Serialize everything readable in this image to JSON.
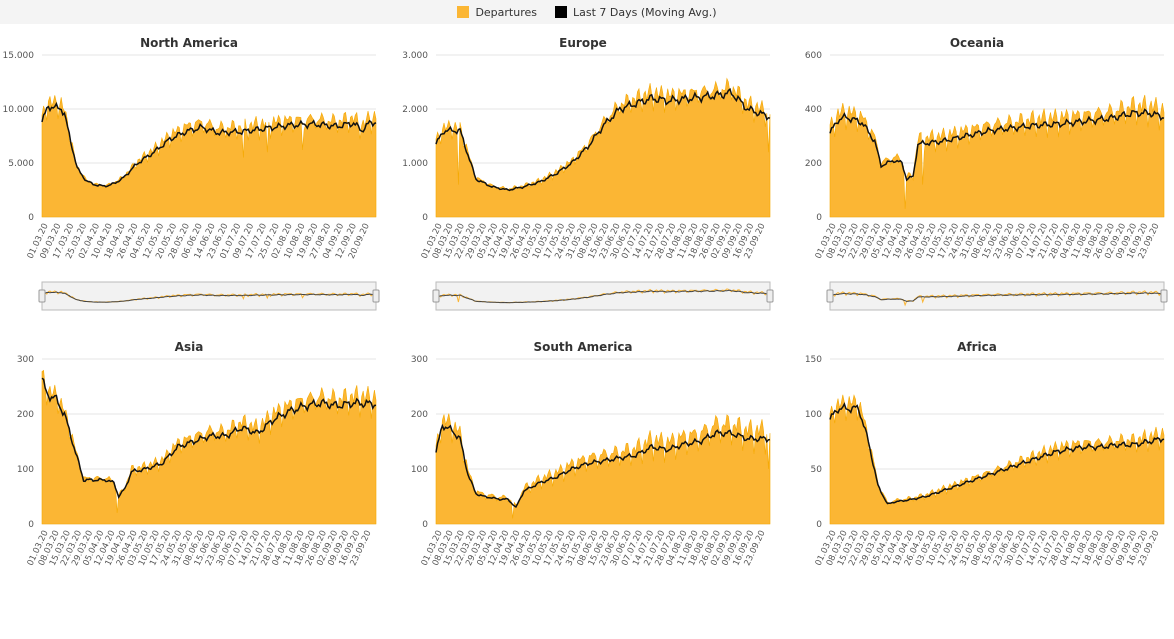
{
  "legend": {
    "items": [
      {
        "label": "Departures",
        "color": "#fbb634"
      },
      {
        "label": "Last 7 Days (Moving Avg.)",
        "color": "#000000"
      }
    ]
  },
  "colors": {
    "area": "#fbb634",
    "avg": "#111111"
  },
  "chart_data": [
    {
      "type": "area",
      "title": "North America",
      "ylim": [
        0,
        15000
      ],
      "yticks": [
        0,
        5000,
        10000,
        15000
      ],
      "ytick_labels": [
        "0",
        "5.000",
        "10.000",
        "15.000"
      ],
      "x_tick_labels": [
        "01.03.20",
        "09.03.20",
        "17.03.20",
        "25.03.20",
        "02.04.20",
        "10.04.20",
        "18.04.20",
        "26.04.20",
        "04.05.20",
        "12.05.20",
        "20.05.20",
        "28.05.20",
        "06.06.20",
        "14.06.20",
        "23.06.20",
        "01.07.20",
        "09.07.20",
        "17.07.20",
        "25.07.20",
        "02.08.20",
        "10.08.20",
        "19.08.20",
        "27.08.20",
        "04.09.20",
        "12.09.20",
        "20.09.20"
      ],
      "n_days": 210,
      "navigator": true,
      "avg_keypoints": [
        [
          0,
          8800
        ],
        [
          4,
          10300
        ],
        [
          8,
          10100
        ],
        [
          12,
          10100
        ],
        [
          14,
          9500
        ],
        [
          18,
          7000
        ],
        [
          22,
          4500
        ],
        [
          28,
          3300
        ],
        [
          35,
          2900
        ],
        [
          42,
          2900
        ],
        [
          50,
          3500
        ],
        [
          60,
          5000
        ],
        [
          70,
          6000
        ],
        [
          80,
          7200
        ],
        [
          90,
          7900
        ],
        [
          100,
          8300
        ],
        [
          110,
          7800
        ],
        [
          125,
          7900
        ],
        [
          140,
          8200
        ],
        [
          155,
          8500
        ],
        [
          170,
          8600
        ],
        [
          185,
          8400
        ],
        [
          195,
          8700
        ],
        [
          200,
          8000
        ],
        [
          205,
          8700
        ],
        [
          209,
          8800
        ]
      ],
      "amp_keypoints": [
        [
          0,
          0.15
        ],
        [
          15,
          0.15
        ],
        [
          22,
          0.1
        ],
        [
          50,
          0.12
        ],
        [
          90,
          0.22
        ],
        [
          209,
          0.2
        ]
      ],
      "dips": [
        [
          126,
          5500
        ],
        [
          141,
          6000
        ],
        [
          163,
          6200
        ]
      ]
    },
    {
      "type": "area",
      "title": "Europe",
      "ylim": [
        0,
        3000
      ],
      "yticks": [
        0,
        1000,
        2000,
        3000
      ],
      "ytick_labels": [
        "0",
        "1.000",
        "2.000",
        "3.000"
      ],
      "x_tick_labels": [
        "01.03.20",
        "08.03.20",
        "15.03.20",
        "22.03.20",
        "29.03.20",
        "05.04.20",
        "12.04.20",
        "19.04.20",
        "26.04.20",
        "03.05.20",
        "10.05.20",
        "17.05.20",
        "24.05.20",
        "31.05.20",
        "08.06.20",
        "15.06.20",
        "23.06.20",
        "30.06.20",
        "07.07.20",
        "14.07.20",
        "21.07.20",
        "28.07.20",
        "04.08.20",
        "11.08.20",
        "18.08.20",
        "26.08.20",
        "02.09.20",
        "09.09.20",
        "16.09.20",
        "23.09.20"
      ],
      "n_days": 210,
      "navigator": true,
      "avg_keypoints": [
        [
          0,
          1350
        ],
        [
          5,
          1600
        ],
        [
          15,
          1600
        ],
        [
          25,
          700
        ],
        [
          35,
          560
        ],
        [
          45,
          500
        ],
        [
          55,
          560
        ],
        [
          65,
          650
        ],
        [
          75,
          800
        ],
        [
          85,
          1000
        ],
        [
          95,
          1300
        ],
        [
          105,
          1700
        ],
        [
          115,
          2000
        ],
        [
          125,
          2100
        ],
        [
          135,
          2200
        ],
        [
          145,
          2150
        ],
        [
          160,
          2200
        ],
        [
          175,
          2250
        ],
        [
          185,
          2300
        ],
        [
          195,
          2000
        ],
        [
          209,
          1850
        ]
      ],
      "amp_keypoints": [
        [
          0,
          0.15
        ],
        [
          20,
          0.15
        ],
        [
          30,
          0.15
        ],
        [
          209,
          0.18
        ]
      ],
      "dips": [
        [
          14,
          600
        ],
        [
          208,
          1200
        ]
      ]
    },
    {
      "type": "area",
      "title": "Oceania",
      "ylim": [
        0,
        600
      ],
      "yticks": [
        0,
        200,
        400,
        600
      ],
      "ytick_labels": [
        "0",
        "200",
        "400",
        "600"
      ],
      "x_tick_labels": [
        "01.03.20",
        "08.03.20",
        "15.03.20",
        "22.03.20",
        "29.03.20",
        "05.04.20",
        "12.04.20",
        "19.04.20",
        "26.04.20",
        "03.05.20",
        "10.05.20",
        "17.05.20",
        "24.05.20",
        "31.05.20",
        "08.06.20",
        "15.06.20",
        "23.06.20",
        "30.06.20",
        "07.07.20",
        "14.07.20",
        "21.07.20",
        "28.07.20",
        "04.08.20",
        "11.08.20",
        "18.08.20",
        "26.08.20",
        "02.09.20",
        "09.09.20",
        "16.09.20",
        "23.09.20"
      ],
      "n_days": 210,
      "navigator": true,
      "avg_keypoints": [
        [
          0,
          310
        ],
        [
          5,
          360
        ],
        [
          10,
          370
        ],
        [
          20,
          350
        ],
        [
          28,
          280
        ],
        [
          32,
          190
        ],
        [
          40,
          210
        ],
        [
          45,
          200
        ],
        [
          48,
          140
        ],
        [
          52,
          150
        ],
        [
          55,
          270
        ],
        [
          70,
          280
        ],
        [
          85,
          300
        ],
        [
          100,
          320
        ],
        [
          115,
          330
        ],
        [
          130,
          340
        ],
        [
          145,
          345
        ],
        [
          160,
          355
        ],
        [
          175,
          365
        ],
        [
          190,
          385
        ],
        [
          200,
          385
        ],
        [
          209,
          370
        ]
      ],
      "amp_keypoints": [
        [
          0,
          0.22
        ],
        [
          30,
          0.22
        ],
        [
          60,
          0.25
        ],
        [
          209,
          0.25
        ]
      ],
      "dips": [
        [
          47,
          30
        ],
        [
          58,
          120
        ]
      ]
    },
    {
      "type": "area",
      "title": "Asia",
      "ylim": [
        0,
        300
      ],
      "yticks": [
        0,
        100,
        200,
        300
      ],
      "ytick_labels": [
        "0",
        "100",
        "200",
        "300"
      ],
      "x_tick_labels": [
        "01.03.20",
        "08.03.20",
        "15.03.20",
        "22.03.20",
        "29.03.20",
        "05.04.20",
        "12.04.20",
        "19.04.20",
        "26.04.20",
        "03.05.20",
        "10.05.20",
        "17.05.20",
        "24.05.20",
        "31.05.20",
        "08.06.20",
        "15.06.20",
        "23.06.20",
        "30.06.20",
        "07.07.20",
        "14.07.20",
        "21.07.20",
        "28.07.20",
        "04.08.20",
        "11.08.20",
        "18.08.20",
        "26.08.20",
        "02.09.20",
        "09.09.20",
        "16.09.20",
        "23.09.20"
      ],
      "n_days": 210,
      "navigator": false,
      "avg_keypoints": [
        [
          0,
          265
        ],
        [
          3,
          235
        ],
        [
          8,
          230
        ],
        [
          14,
          200
        ],
        [
          20,
          140
        ],
        [
          26,
          80
        ],
        [
          30,
          80
        ],
        [
          40,
          80
        ],
        [
          45,
          75
        ],
        [
          48,
          50
        ],
        [
          52,
          65
        ],
        [
          56,
          95
        ],
        [
          65,
          100
        ],
        [
          75,
          110
        ],
        [
          85,
          140
        ],
        [
          95,
          150
        ],
        [
          105,
          160
        ],
        [
          115,
          160
        ],
        [
          125,
          175
        ],
        [
          135,
          165
        ],
        [
          145,
          190
        ],
        [
          155,
          205
        ],
        [
          165,
          215
        ],
        [
          175,
          220
        ],
        [
          185,
          215
        ],
        [
          195,
          220
        ],
        [
          209,
          218
        ]
      ],
      "amp_keypoints": [
        [
          0,
          0.1
        ],
        [
          20,
          0.15
        ],
        [
          100,
          0.22
        ],
        [
          209,
          0.2
        ]
      ],
      "dips": [
        [
          47,
          20
        ]
      ]
    },
    {
      "type": "area",
      "title": "South America",
      "ylim": [
        0,
        300
      ],
      "yticks": [
        0,
        100,
        200,
        300
      ],
      "ytick_labels": [
        "0",
        "100",
        "200",
        "300"
      ],
      "x_tick_labels": [
        "01.03.20",
        "08.03.20",
        "15.03.20",
        "22.03.20",
        "29.03.20",
        "05.04.20",
        "12.04.20",
        "19.04.20",
        "26.04.20",
        "03.05.20",
        "10.05.20",
        "17.05.20",
        "24.05.20",
        "31.05.20",
        "08.06.20",
        "15.06.20",
        "23.06.20",
        "30.06.20",
        "07.07.20",
        "14.07.20",
        "21.07.20",
        "28.07.20",
        "04.08.20",
        "11.08.20",
        "18.08.20",
        "26.08.20",
        "02.09.20",
        "09.09.20",
        "16.09.20",
        "23.09.20"
      ],
      "n_days": 210,
      "navigator": false,
      "avg_keypoints": [
        [
          0,
          130
        ],
        [
          4,
          180
        ],
        [
          10,
          170
        ],
        [
          15,
          155
        ],
        [
          20,
          90
        ],
        [
          25,
          55
        ],
        [
          30,
          50
        ],
        [
          40,
          45
        ],
        [
          45,
          45
        ],
        [
          50,
          30
        ],
        [
          55,
          60
        ],
        [
          65,
          75
        ],
        [
          75,
          85
        ],
        [
          85,
          100
        ],
        [
          95,
          110
        ],
        [
          105,
          115
        ],
        [
          115,
          120
        ],
        [
          125,
          125
        ],
        [
          135,
          140
        ],
        [
          145,
          135
        ],
        [
          155,
          145
        ],
        [
          165,
          150
        ],
        [
          175,
          165
        ],
        [
          185,
          165
        ],
        [
          195,
          155
        ],
        [
          209,
          155
        ]
      ],
      "amp_keypoints": [
        [
          0,
          0.2
        ],
        [
          30,
          0.3
        ],
        [
          100,
          0.35
        ],
        [
          209,
          0.35
        ]
      ],
      "dips": [
        [
          48,
          10
        ],
        [
          208,
          100
        ]
      ]
    },
    {
      "type": "area",
      "title": "Africa",
      "ylim": [
        0,
        150
      ],
      "yticks": [
        0,
        50,
        100,
        150
      ],
      "ytick_labels": [
        "0",
        "50",
        "100",
        "150"
      ],
      "x_tick_labels": [
        "01.03.20",
        "08.03.20",
        "15.03.20",
        "22.03.20",
        "29.03.20",
        "05.04.20",
        "12.04.20",
        "19.04.20",
        "26.04.20",
        "03.05.20",
        "10.05.20",
        "17.05.20",
        "24.05.20",
        "31.05.20",
        "08.06.20",
        "15.06.20",
        "23.06.20",
        "30.06.20",
        "07.07.20",
        "14.07.20",
        "21.07.20",
        "28.07.20",
        "04.08.20",
        "11.08.20",
        "18.08.20",
        "26.08.20",
        "02.09.20",
        "09.09.20",
        "16.09.20",
        "23.09.20"
      ],
      "n_days": 210,
      "navigator": false,
      "avg_keypoints": [
        [
          0,
          95
        ],
        [
          5,
          105
        ],
        [
          12,
          105
        ],
        [
          18,
          105
        ],
        [
          24,
          75
        ],
        [
          30,
          35
        ],
        [
          36,
          18
        ],
        [
          40,
          20
        ],
        [
          50,
          22
        ],
        [
          60,
          25
        ],
        [
          70,
          30
        ],
        [
          80,
          35
        ],
        [
          90,
          40
        ],
        [
          100,
          45
        ],
        [
          110,
          50
        ],
        [
          120,
          55
        ],
        [
          130,
          60
        ],
        [
          140,
          65
        ],
        [
          150,
          68
        ],
        [
          160,
          70
        ],
        [
          170,
          70
        ],
        [
          180,
          72
        ],
        [
          190,
          72
        ],
        [
          200,
          75
        ],
        [
          209,
          78
        ]
      ],
      "amp_keypoints": [
        [
          0,
          0.12
        ],
        [
          30,
          0.25
        ],
        [
          100,
          0.2
        ],
        [
          209,
          0.22
        ]
      ],
      "dips": []
    }
  ]
}
